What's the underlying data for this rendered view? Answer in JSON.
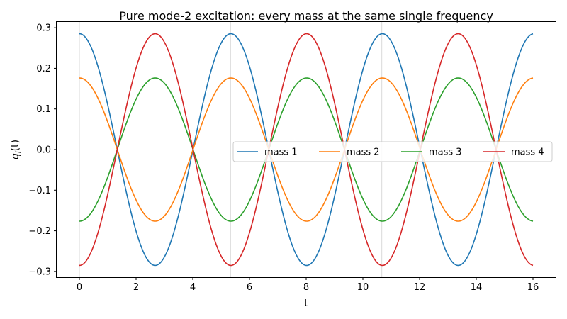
{
  "chart_data": {
    "type": "line",
    "title": "Pure mode-2 excitation: every mass at the same single frequency",
    "xlabel": "t",
    "ylabel_main": "q",
    "ylabel_sub": "i",
    "ylabel_arg": "(t)",
    "xlim": [
      -0.8,
      16.8
    ],
    "ylim": [
      -0.3142,
      0.3142
    ],
    "xticks": [
      0,
      2,
      4,
      6,
      8,
      10,
      12,
      14,
      16
    ],
    "xtick_labels": [
      "0",
      "2",
      "4",
      "6",
      "8",
      "10",
      "12",
      "14",
      "16"
    ],
    "yticks": [
      -0.3,
      -0.2,
      -0.1,
      0.0,
      0.1,
      0.2,
      0.3
    ],
    "ytick_labels": [
      "−0.3",
      "−0.2",
      "−0.1",
      "0.0",
      "0.1",
      "0.2",
      "0.3"
    ],
    "vertical_gridlines_x": [
      0,
      5.333,
      10.667
    ],
    "angular_frequency": 1.1756,
    "legend_placement": "center-right",
    "legend_columns": 4,
    "series": [
      {
        "name": "mass 1",
        "amplitude": 0.2853,
        "color": "#1f77b4"
      },
      {
        "name": "mass 2",
        "amplitude": 0.1763,
        "color": "#ff7f0e"
      },
      {
        "name": "mass 3",
        "amplitude": -0.1763,
        "color": "#2ca02c"
      },
      {
        "name": "mass 4",
        "amplitude": -0.2853,
        "color": "#d62728"
      }
    ]
  }
}
